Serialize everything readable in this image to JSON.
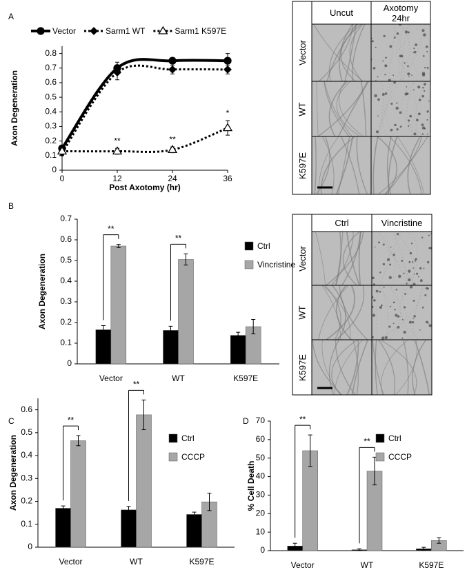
{
  "panel_labels": [
    "A",
    "B",
    "C",
    "D"
  ],
  "micrographs": [
    {
      "columns": [
        "Uncut",
        "Axotomy\n24hr"
      ],
      "rows": [
        "Vector",
        "WT",
        "K597E"
      ]
    },
    {
      "columns": [
        "Ctrl",
        "Vincristine"
      ],
      "rows": [
        "Vector",
        "WT",
        "K597E"
      ]
    }
  ],
  "chart_data": [
    {
      "type": "line",
      "y_label": "Axon Degeneration",
      "x_label": "Post Axotomy (hr)",
      "x": [
        0,
        12,
        24,
        36
      ],
      "xlim": [
        0,
        36
      ],
      "xticks": [
        0,
        12,
        24,
        36
      ],
      "ylim": [
        0,
        0.85
      ],
      "yticks": [
        0,
        0.1,
        0.2,
        0.3,
        0.4,
        0.5,
        0.6,
        0.7,
        0.8
      ],
      "grid": false,
      "legend": "top",
      "series": [
        {
          "name": "Vector",
          "color": "#000000",
          "marker": "circle",
          "dash": "solid",
          "values": [
            0.15,
            0.7,
            0.75,
            0.75
          ],
          "errors": [
            0.02,
            0.04,
            0.02,
            0.05
          ]
        },
        {
          "name": "Sarm1 WT",
          "color": "#000000",
          "marker": "diamond",
          "dash": "dotted",
          "values": [
            0.12,
            0.67,
            0.69,
            0.69
          ],
          "errors": [
            0.02,
            0.05,
            0.03,
            0.03
          ]
        },
        {
          "name": "Sarm1 K597E",
          "color": "#000000",
          "marker": "triangle",
          "dash": "dotted",
          "values": [
            0.13,
            0.13,
            0.14,
            0.29
          ],
          "errors": [
            0.02,
            0.02,
            0.02,
            0.05
          ]
        }
      ],
      "annotations": [
        {
          "text": "**",
          "x": 12
        },
        {
          "text": "**",
          "x": 24
        },
        {
          "text": "*",
          "x": 36
        }
      ]
    },
    {
      "type": "bar",
      "y_label": "Axon Degeneration",
      "categories": [
        "Vector",
        "WT",
        "K597E"
      ],
      "ylim": [
        0,
        0.7
      ],
      "yticks": [
        0,
        0.1,
        0.2,
        0.3,
        0.4,
        0.5,
        0.6,
        0.7
      ],
      "grid": false,
      "legend": "right",
      "series": [
        {
          "name": "Ctrl",
          "color": "#000000",
          "values": [
            0.165,
            0.162,
            0.138
          ],
          "errors": [
            0.02,
            0.02,
            0.015
          ]
        },
        {
          "name": "Vincristine",
          "color": "#a6a6a6",
          "values": [
            0.57,
            0.505,
            0.18
          ],
          "errors": [
            0.008,
            0.027,
            0.035
          ]
        }
      ],
      "significance": [
        "**",
        "**",
        null
      ]
    },
    {
      "type": "bar",
      "y_label": "Axon Degeneration",
      "categories": [
        "Vector",
        "WT",
        "K597E"
      ],
      "ylim": [
        0,
        0.65
      ],
      "yticks": [
        0,
        0.1,
        0.2,
        0.3,
        0.4,
        0.5,
        0.6
      ],
      "grid": false,
      "legend": "right",
      "series": [
        {
          "name": "Ctrl",
          "color": "#000000",
          "values": [
            0.17,
            0.163,
            0.143
          ],
          "errors": [
            0.01,
            0.015,
            0.01
          ]
        },
        {
          "name": "CCCP",
          "color": "#a6a6a6",
          "values": [
            0.465,
            0.578,
            0.198
          ],
          "errors": [
            0.022,
            0.065,
            0.038
          ]
        }
      ],
      "significance": [
        "**",
        "**",
        null
      ]
    },
    {
      "type": "bar",
      "y_label": "% Cell Death",
      "categories": [
        "Vector",
        "WT",
        "K597E"
      ],
      "ylim": [
        0,
        70
      ],
      "yticks": [
        0,
        10,
        20,
        30,
        40,
        50,
        60,
        70
      ],
      "grid": false,
      "legend": "right",
      "series": [
        {
          "name": "Ctrl",
          "color": "#000000",
          "values": [
            2.5,
            0.5,
            1
          ],
          "errors": [
            1.5,
            0.5,
            0.8
          ]
        },
        {
          "name": "CCCP",
          "color": "#a6a6a6",
          "values": [
            54,
            43,
            5.5
          ],
          "errors": [
            8.5,
            7.5,
            1.5
          ]
        }
      ],
      "significance": [
        "**",
        "**",
        null
      ]
    }
  ]
}
